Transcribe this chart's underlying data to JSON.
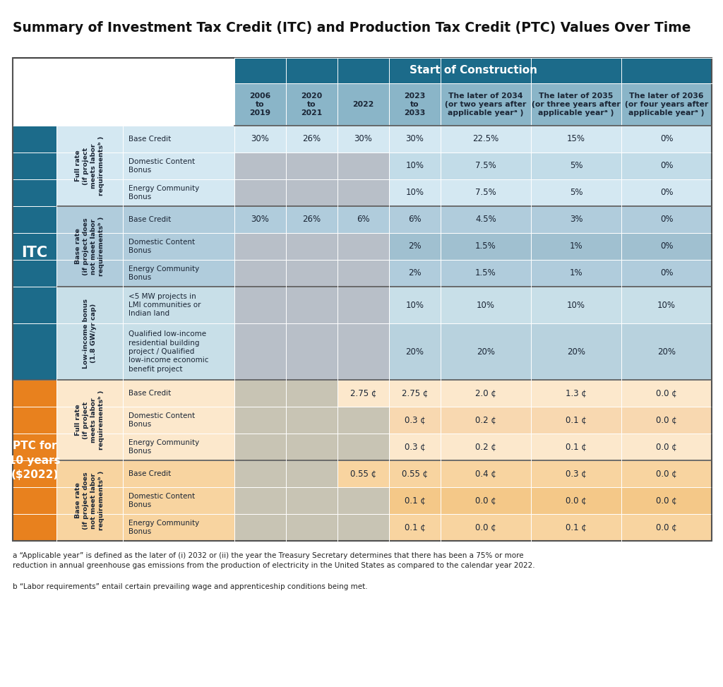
{
  "title": "Summary of Investment Tax Credit (ITC) and Production Tax Credit (PTC) Values Over Time",
  "header_bg": "#1c6b8a",
  "col_header_bg": "#8ab5c8",
  "itc_section_color": "#1c6b8a",
  "ptc_section_color": "#e8811e",
  "itc_full_light": "#d4e8f2",
  "itc_full_dark": "#c2dce8",
  "itc_base_light": "#b0ccdc",
  "itc_base_dark": "#a0c0d0",
  "itc_low_light": "#c8dfe8",
  "itc_low_dark": "#b8d2de",
  "ptc_full_light": "#fce8cc",
  "ptc_full_dark": "#f8d8b0",
  "ptc_base_light": "#f8d4a0",
  "ptc_base_dark": "#f4c888",
  "gray_cell": "#b8bfc8",
  "ptc_gray_cell": "#c8c4b4",
  "text_dark": "#1a2535",
  "white": "#ffffff",
  "col_groups": [
    "2006\nto\n2019",
    "2020\nto\n2021",
    "2022",
    "2023\nto\n2033",
    "The later of 2034\n(or two years after\napplicable yearᵃ )",
    "The later of 2035\n(or three years after\napplicable yearᵃ )",
    "The later of 2036\n(or four years after\napplicable yearᵃ )"
  ],
  "footnote_a": "a “Applicable year” is defined as the later of (i) 2032 or (ii) the year the Treasury Secretary determines that there has been a 75% or more\nreduction in annual greenhouse gas emissions from the production of electricity in the United States as compared to the calendar year 2022.",
  "footnote_b": "b “Labor requirements” entail certain prevailing wage and apprenticeship conditions being met.",
  "rows": [
    {
      "section": "ITC",
      "group_idx": 0,
      "label": "Base Credit",
      "values": [
        "30%",
        "26%",
        "30%",
        "30%",
        "22.5%",
        "15%",
        "0%"
      ],
      "gray": [
        false,
        false,
        false,
        false,
        false,
        false,
        false
      ],
      "row_alt": 0
    },
    {
      "section": "ITC",
      "group_idx": 0,
      "label": "Domestic Content\nBonus",
      "values": [
        "",
        "",
        "",
        "10%",
        "7.5%",
        "5%",
        "0%"
      ],
      "gray": [
        true,
        true,
        true,
        false,
        false,
        false,
        false
      ],
      "row_alt": 1
    },
    {
      "section": "ITC",
      "group_idx": 0,
      "label": "Energy Community\nBonus",
      "values": [
        "",
        "",
        "",
        "10%",
        "7.5%",
        "5%",
        "0%"
      ],
      "gray": [
        true,
        true,
        true,
        false,
        false,
        false,
        false
      ],
      "row_alt": 0
    },
    {
      "section": "ITC",
      "group_idx": 1,
      "label": "Base Credit",
      "values": [
        "30%",
        "26%",
        "6%",
        "6%",
        "4.5%",
        "3%",
        "0%"
      ],
      "gray": [
        false,
        false,
        false,
        false,
        false,
        false,
        false
      ],
      "row_alt": 0
    },
    {
      "section": "ITC",
      "group_idx": 1,
      "label": "Domestic Content\nBonus",
      "values": [
        "",
        "",
        "",
        "2%",
        "1.5%",
        "1%",
        "0%"
      ],
      "gray": [
        true,
        true,
        true,
        false,
        false,
        false,
        false
      ],
      "row_alt": 1
    },
    {
      "section": "ITC",
      "group_idx": 1,
      "label": "Energy Community\nBonus",
      "values": [
        "",
        "",
        "",
        "2%",
        "1.5%",
        "1%",
        "0%"
      ],
      "gray": [
        true,
        true,
        true,
        false,
        false,
        false,
        false
      ],
      "row_alt": 0
    },
    {
      "section": "ITC",
      "group_idx": 2,
      "label": "<5 MW projects in\nLMI communities or\nIndian land",
      "values": [
        "",
        "",
        "",
        "10%",
        "10%",
        "10%",
        "10%"
      ],
      "gray": [
        true,
        true,
        true,
        false,
        false,
        false,
        false
      ],
      "row_alt": 0
    },
    {
      "section": "ITC",
      "group_idx": 2,
      "label": "Qualified low-income\nresidential building\nproject / Qualified\nlow-income economic\nbenefit project",
      "values": [
        "",
        "",
        "",
        "20%",
        "20%",
        "20%",
        "20%"
      ],
      "gray": [
        true,
        true,
        true,
        false,
        false,
        false,
        false
      ],
      "row_alt": 1
    },
    {
      "section": "PTC",
      "group_idx": 0,
      "label": "Base Credit",
      "values": [
        "",
        "",
        "2.75 ¢",
        "2.75 ¢",
        "2.0 ¢",
        "1.3 ¢",
        "0.0 ¢"
      ],
      "gray": [
        true,
        true,
        false,
        false,
        false,
        false,
        false
      ],
      "row_alt": 0
    },
    {
      "section": "PTC",
      "group_idx": 0,
      "label": "Domestic Content\nBonus",
      "values": [
        "",
        "",
        "",
        "0.3 ¢",
        "0.2 ¢",
        "0.1 ¢",
        "0.0 ¢"
      ],
      "gray": [
        true,
        true,
        true,
        false,
        false,
        false,
        false
      ],
      "row_alt": 1
    },
    {
      "section": "PTC",
      "group_idx": 0,
      "label": "Energy Community\nBonus",
      "values": [
        "",
        "",
        "",
        "0.3 ¢",
        "0.2 ¢",
        "0.1 ¢",
        "0.0 ¢"
      ],
      "gray": [
        true,
        true,
        true,
        false,
        false,
        false,
        false
      ],
      "row_alt": 0
    },
    {
      "section": "PTC",
      "group_idx": 1,
      "label": "Base Credit",
      "values": [
        "",
        "",
        "0.55 ¢",
        "0.55 ¢",
        "0.4 ¢",
        "0.3 ¢",
        "0.0 ¢"
      ],
      "gray": [
        true,
        true,
        false,
        false,
        false,
        false,
        false
      ],
      "row_alt": 0
    },
    {
      "section": "PTC",
      "group_idx": 1,
      "label": "Domestic Content\nBonus",
      "values": [
        "",
        "",
        "",
        "0.1 ¢",
        "0.0 ¢",
        "0.0 ¢",
        "0.0 ¢"
      ],
      "gray": [
        true,
        true,
        true,
        false,
        false,
        false,
        false
      ],
      "row_alt": 1
    },
    {
      "section": "PTC",
      "group_idx": 1,
      "label": "Energy Community\nBonus",
      "values": [
        "",
        "",
        "",
        "0.1 ¢",
        "0.0 ¢",
        "0.1 ¢",
        "0.0 ¢"
      ],
      "gray": [
        true,
        true,
        true,
        false,
        false,
        false,
        false
      ],
      "row_alt": 0
    }
  ],
  "itc_groups": [
    {
      "r0": 0,
      "r1": 2,
      "text": "Full rate\n(if project\nmeets labor\nrequirementsᵇ )"
    },
    {
      "r0": 3,
      "r1": 5,
      "text": "Base rate\n(if project does\nnot meet labor\nrequirementsᵇ )"
    },
    {
      "r0": 6,
      "r1": 7,
      "text": "Low-income bonus\n(1.8 GW/yr cap)"
    }
  ],
  "ptc_groups": [
    {
      "r0": 8,
      "r1": 10,
      "text": "Full rate\n(if project\nmeets labor\nrequirementsᵇ )"
    },
    {
      "r0": 11,
      "r1": 13,
      "text": "Base rate\n(if project does\nnot meet labor\nrequirementsᵇ )"
    }
  ]
}
